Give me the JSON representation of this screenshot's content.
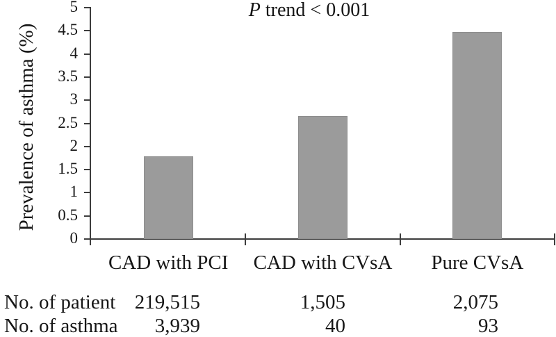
{
  "chart_data": {
    "type": "bar",
    "title": "",
    "annotation": {
      "italic_prefix": "P",
      "rest": " trend < 0.001"
    },
    "categories": [
      "CAD with PCI",
      "CAD with CVsA",
      "Pure CVsA"
    ],
    "values": [
      1.79,
      2.66,
      4.48
    ],
    "xlabel": "",
    "ylabel": "Prevalence of asthma (%)",
    "ylim": [
      0,
      5
    ],
    "ytick_step": 0.5,
    "ytick_labels": [
      "0",
      "0.5",
      "1",
      "1.5",
      "2",
      "2.5",
      "3",
      "3.5",
      "4",
      "4.5",
      "5"
    ],
    "grid": false,
    "legend": "none",
    "bar_color": "#9b9b9b",
    "axis_color": "#3d3d3d",
    "text_color": "#161616"
  },
  "footer_table": {
    "rows": [
      {
        "label": "No. of patient",
        "values": [
          "219,515",
          "1,505",
          "2,075"
        ]
      },
      {
        "label": "No. of asthma",
        "values": [
          "3,939",
          "40",
          "93"
        ]
      }
    ]
  }
}
